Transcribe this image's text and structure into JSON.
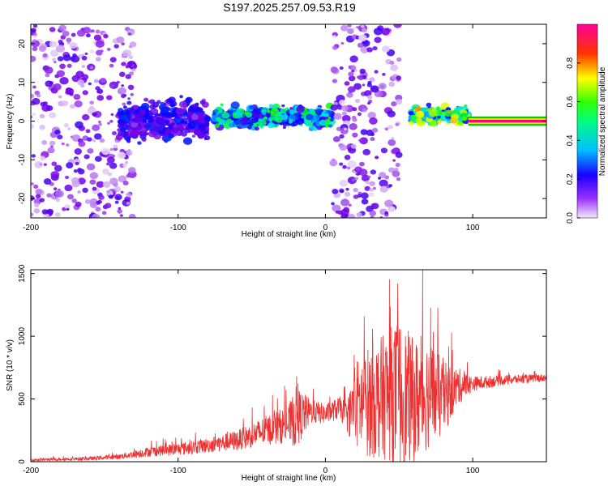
{
  "title": "S197.2025.257.09.53.R19",
  "chart_data": [
    {
      "type": "heatmap",
      "name": "spectrogram",
      "xlabel": "Height of straight line (km)",
      "ylabel": "Frequency (Hz)",
      "xlim": [
        -200,
        150
      ],
      "ylim": [
        -25,
        25
      ],
      "xticks": [
        -200,
        -100,
        0,
        100
      ],
      "yticks": [
        -20,
        -10,
        0,
        10,
        20
      ],
      "colorbar": {
        "label": "Normalized spectral amplitude",
        "range": [
          0,
          1
        ],
        "ticks": [
          0.0,
          0.2,
          0.4,
          0.6,
          0.8
        ],
        "colors": [
          "#e9d8f8",
          "#7a00e6",
          "#0000ff",
          "#00e5ff",
          "#00ff00",
          "#ffff00",
          "#ff0000",
          "#ff0099"
        ]
      },
      "features": [
        {
          "label": "diffuse scatter",
          "x_range": [
            -200,
            -130
          ],
          "freq_range": [
            -25,
            25
          ],
          "amplitude": 0.1
        },
        {
          "label": "dense band",
          "x_range": [
            -140,
            -80
          ],
          "freq_range": [
            -6,
            6
          ],
          "amplitude": 0.25
        },
        {
          "label": "narrow trace",
          "x_range": [
            -75,
            5
          ],
          "freq_range": [
            -2,
            4
          ],
          "amplitude": 0.45
        },
        {
          "label": "scatter plume",
          "x_range": [
            5,
            50
          ],
          "freq_range": [
            -25,
            25
          ],
          "amplitude": 0.15
        },
        {
          "label": "narrow trace",
          "x_range": [
            58,
            97
          ],
          "freq_range": [
            -1,
            4
          ],
          "amplitude": 0.6
        },
        {
          "label": "steady tone",
          "x_range": [
            97,
            150
          ],
          "freq_range": [
            -0.5,
            0.5
          ],
          "amplitude": 0.98
        }
      ]
    },
    {
      "type": "line",
      "name": "snr",
      "xlabel": "Height of straight line (km)",
      "ylabel": "SNR (10 * v/v)",
      "xlim": [
        -200,
        150
      ],
      "ylim": [
        0,
        1530
      ],
      "xticks": [
        -200,
        -100,
        0,
        100
      ],
      "yticks": [
        0,
        500,
        1000,
        1500
      ],
      "color": "#ee3030",
      "series": [
        {
          "name": "SNR envelope",
          "x": [
            -200,
            -160,
            -140,
            -120,
            -100,
            -80,
            -60,
            -40,
            -25,
            -20,
            -10,
            0,
            10,
            15,
            20,
            30,
            40,
            50,
            60,
            70,
            80,
            90,
            100,
            120,
            150
          ],
          "mean": [
            15,
            25,
            40,
            80,
            100,
            130,
            170,
            250,
            300,
            350,
            400,
            380,
            430,
            350,
            450,
            480,
            520,
            550,
            480,
            550,
            500,
            600,
            620,
            650,
            670
          ],
          "spread": [
            10,
            15,
            20,
            40,
            50,
            60,
            80,
            120,
            150,
            250,
            100,
            80,
            90,
            120,
            350,
            450,
            500,
            600,
            500,
            450,
            300,
            150,
            60,
            40,
            30
          ]
        }
      ]
    }
  ]
}
